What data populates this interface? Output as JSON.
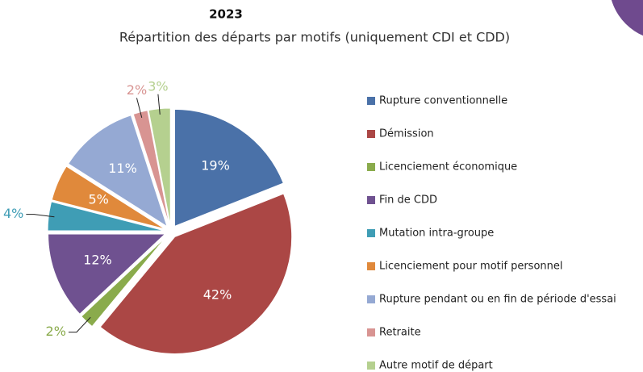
{
  "chart_data": {
    "type": "pie",
    "title": "2023",
    "subtitle": "Répartition des départs par motifs (uniquement CDI et CDD)",
    "categories": [
      "Rupture conventionnelle",
      "Démission",
      "Licenciement économique",
      "Fin de CDD",
      "Mutation intra-groupe",
      "Licenciement pour motif personnel",
      "Rupture pendant ou en fin de période d'essai",
      "Retraite",
      "Autre motif de départ"
    ],
    "values": [
      19,
      42,
      2,
      12,
      4,
      5,
      11,
      2,
      3
    ],
    "value_labels": [
      "19%",
      "42%",
      "2%",
      "12%",
      "4%",
      "5%",
      "11%",
      "2%",
      "3%"
    ],
    "colors": [
      "#4a71a8",
      "#ab4745",
      "#8aab4c",
      "#6f5190",
      "#3f9db5",
      "#e0893b",
      "#95a9d3",
      "#d89492",
      "#b5d08f"
    ],
    "legend": "right"
  }
}
